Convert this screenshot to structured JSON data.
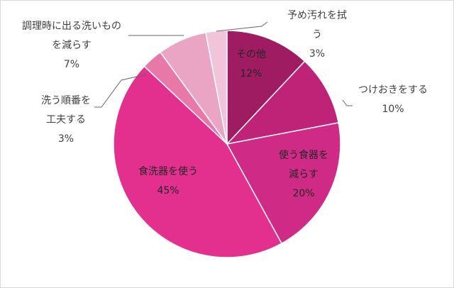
{
  "chart_data": {
    "type": "pie",
    "title": "",
    "start_angle_deg": 0,
    "direction": "clockwise",
    "slices": [
      {
        "name": "その他",
        "value": 12,
        "value_label": "12%",
        "color": "#9f1c63",
        "name_lines": [
          "その他"
        ]
      },
      {
        "name": "つけおきをする",
        "value": 10,
        "value_label": "10%",
        "color": "#bf2377",
        "name_lines": [
          "つけおきをする"
        ]
      },
      {
        "name": "使う食器を減らす",
        "value": 20,
        "value_label": "20%",
        "color": "#cf2a86",
        "name_lines": [
          "使う食器を",
          "減らす"
        ]
      },
      {
        "name": "食洗器を使う",
        "value": 45,
        "value_label": "45%",
        "color": "#e3308f",
        "name_lines": [
          "食洗器を使う"
        ]
      },
      {
        "name": "洗う順番を工夫する",
        "value": 3,
        "value_label": "3%",
        "color": "#e878a8",
        "name_lines": [
          "洗う順番を",
          "工夫する"
        ]
      },
      {
        "name": "調理時に出る洗いものを減らす",
        "value": 7,
        "value_label": "7%",
        "color": "#eaa5c4",
        "name_lines": [
          "調理時に出る洗いもの",
          "を減らす"
        ]
      },
      {
        "name": "予め汚れを拭う",
        "value": 3,
        "value_label": "3%",
        "color": "#f1c4d9",
        "name_lines": [
          "予め汚れを拭",
          "う"
        ]
      }
    ]
  }
}
